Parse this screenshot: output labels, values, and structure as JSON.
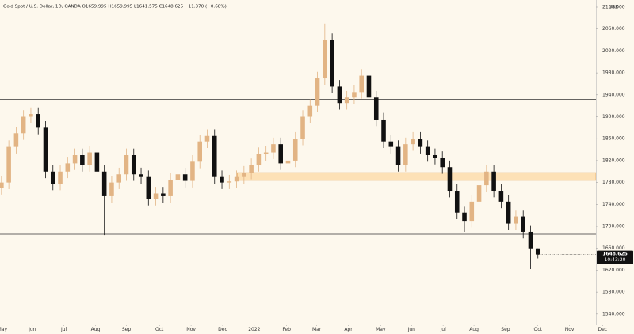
{
  "chart_data": {
    "type": "candlestick",
    "title": "Gold Spot / U.S. Dollar, 1D, OANDA  O1659.995 H1659.995 L1641.575 C1648.625 −11.370 (−0.68%)",
    "currency": "USD",
    "countdown": "10:43:20",
    "up_color": "#e2b484",
    "down_color": "#111111",
    "open": [
      1770,
      1780,
      1845,
      1870,
      1900,
      1905,
      1880,
      1800,
      1778,
      1800,
      1815,
      1830,
      1812,
      1835,
      1800,
      1755,
      1780,
      1795,
      1830,
      1795,
      1790,
      1750,
      1760,
      1755,
      1785,
      1795,
      1783,
      1818,
      1855,
      1865,
      1790,
      1780,
      1782,
      1790,
      1798,
      1812,
      1832,
      1835,
      1850,
      1815,
      1820,
      1860,
      1900,
      1920,
      1970,
      2040,
      1955,
      1925,
      1935,
      1945,
      1975,
      1935,
      1895,
      1855,
      1845,
      1812,
      1850,
      1860,
      1845,
      1830,
      1825,
      1808,
      1765,
      1725,
      1710,
      1745,
      1775,
      1800,
      1765,
      1745,
      1705,
      1718,
      1690,
      1659.995
    ],
    "high": [
      1792,
      1857,
      1882,
      1912,
      1917,
      1917,
      1892,
      1812,
      1812,
      1827,
      1842,
      1842,
      1847,
      1847,
      1812,
      1792,
      1807,
      1842,
      1842,
      1807,
      1802,
      1772,
      1772,
      1797,
      1807,
      1807,
      1830,
      1867,
      1877,
      1877,
      1802,
      1794,
      1802,
      1810,
      1824,
      1844,
      1847,
      1862,
      1862,
      1832,
      1872,
      1912,
      1932,
      1982,
      2070,
      2052,
      1967,
      1947,
      1957,
      1987,
      1987,
      1947,
      1907,
      1867,
      1857,
      1862,
      1872,
      1872,
      1857,
      1842,
      1837,
      1820,
      1777,
      1737,
      1757,
      1787,
      1812,
      1812,
      1777,
      1757,
      1730,
      1730,
      1702,
      1659.995
    ],
    "low": [
      1758,
      1768,
      1833,
      1858,
      1888,
      1868,
      1788,
      1766,
      1766,
      1788,
      1803,
      1800,
      1800,
      1788,
      1684,
      1743,
      1768,
      1783,
      1783,
      1778,
      1738,
      1738,
      1743,
      1743,
      1773,
      1771,
      1771,
      1806,
      1843,
      1778,
      1768,
      1768,
      1770,
      1778,
      1786,
      1800,
      1820,
      1823,
      1803,
      1803,
      1808,
      1848,
      1888,
      1908,
      1958,
      1943,
      1913,
      1913,
      1923,
      1933,
      1923,
      1883,
      1843,
      1833,
      1800,
      1800,
      1838,
      1833,
      1818,
      1813,
      1796,
      1753,
      1713,
      1690,
      1698,
      1733,
      1763,
      1753,
      1733,
      1693,
      1693,
      1678,
      1622,
      1641.575
    ],
    "close": [
      1780,
      1845,
      1870,
      1900,
      1905,
      1880,
      1800,
      1778,
      1800,
      1815,
      1830,
      1812,
      1835,
      1800,
      1755,
      1780,
      1795,
      1830,
      1795,
      1790,
      1750,
      1760,
      1755,
      1785,
      1795,
      1783,
      1818,
      1855,
      1865,
      1790,
      1780,
      1782,
      1790,
      1798,
      1812,
      1832,
      1835,
      1850,
      1815,
      1820,
      1860,
      1900,
      1920,
      1970,
      2040,
      1955,
      1925,
      1935,
      1945,
      1975,
      1935,
      1895,
      1855,
      1845,
      1812,
      1850,
      1860,
      1845,
      1830,
      1825,
      1808,
      1765,
      1725,
      1710,
      1745,
      1775,
      1800,
      1765,
      1745,
      1705,
      1718,
      1690,
      1660,
      1648.625
    ],
    "xlim": [
      -0.2,
      80.9
    ],
    "xticks": [
      {
        "value": 0.1,
        "label": "May"
      },
      {
        "value": 4.2,
        "label": "Jun"
      },
      {
        "value": 8.5,
        "label": "Jul"
      },
      {
        "value": 12.8,
        "label": "Aug"
      },
      {
        "value": 17.0,
        "label": "Sep"
      },
      {
        "value": 21.5,
        "label": "Oct"
      },
      {
        "value": 25.8,
        "label": "Nov"
      },
      {
        "value": 30.1,
        "label": "Dec"
      },
      {
        "value": 34.4,
        "label": "2022"
      },
      {
        "value": 38.8,
        "label": "Feb"
      },
      {
        "value": 42.9,
        "label": "Mar"
      },
      {
        "value": 47.2,
        "label": "Apr"
      },
      {
        "value": 51.6,
        "label": "May"
      },
      {
        "value": 55.8,
        "label": "Jun"
      },
      {
        "value": 60.1,
        "label": "Jul"
      },
      {
        "value": 64.3,
        "label": "Aug"
      },
      {
        "value": 68.6,
        "label": "Sep"
      },
      {
        "value": 73.0,
        "label": "Oct"
      },
      {
        "value": 77.3,
        "label": "Nov"
      },
      {
        "value": 81.8,
        "label": "Dec"
      }
    ],
    "ylim": [
      1521,
      2113
    ],
    "yticks": [
      {
        "value": 2100,
        "label": "2100.000"
      },
      {
        "value": 2060,
        "label": "2060.000"
      },
      {
        "value": 2020,
        "label": "2020.000"
      },
      {
        "value": 1980,
        "label": "1980.000"
      },
      {
        "value": 1940,
        "label": "1940.000"
      },
      {
        "value": 1900,
        "label": "1900.000"
      },
      {
        "value": 1860,
        "label": "1860.000"
      },
      {
        "value": 1820,
        "label": "1820.000"
      },
      {
        "value": 1780,
        "label": "1780.000"
      },
      {
        "value": 1740,
        "label": "1740.000"
      },
      {
        "value": 1700,
        "label": "1700.000"
      },
      {
        "value": 1660,
        "label": "1660.000"
      },
      {
        "value": 1620,
        "label": "1620.000"
      },
      {
        "value": 1580,
        "label": "1580.000"
      },
      {
        "value": 1540,
        "label": "1540.000"
      }
    ],
    "levels": [
      1932,
      1685.6
    ],
    "zone": {
      "low": 1784,
      "high": 1798,
      "start": 32.1
    }
  }
}
